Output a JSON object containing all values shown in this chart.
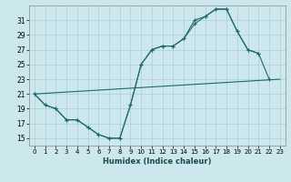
{
  "xlabel": "Humidex (Indice chaleur)",
  "bg_color": "#cce8ec",
  "grid_color": "#aacdd4",
  "line_color": "#1a6b6b",
  "xlim": [
    -0.5,
    23.5
  ],
  "ylim": [
    14,
    33
  ],
  "xticks": [
    0,
    1,
    2,
    3,
    4,
    5,
    6,
    7,
    8,
    9,
    10,
    11,
    12,
    13,
    14,
    15,
    16,
    17,
    18,
    19,
    20,
    21,
    22,
    23
  ],
  "yticks": [
    15,
    17,
    19,
    21,
    23,
    25,
    27,
    29,
    31
  ],
  "line1_x": [
    0,
    1,
    2,
    3,
    4,
    5,
    6,
    7,
    8,
    9,
    10,
    11,
    12,
    13,
    14,
    15,
    16,
    17,
    18,
    19,
    20,
    21
  ],
  "line1_y": [
    21,
    19.5,
    19,
    17.5,
    17.5,
    16.5,
    15.5,
    15,
    15,
    19.5,
    25,
    27,
    27.5,
    27.5,
    28.5,
    30.5,
    31.5,
    32.5,
    32.5,
    29.5,
    27.0,
    26.5
  ],
  "line2_x": [
    0,
    1,
    2,
    3,
    4,
    5,
    6,
    7,
    8,
    9,
    10,
    11,
    12,
    13,
    14,
    15,
    16,
    17,
    18,
    19,
    20,
    21,
    22
  ],
  "line2_y": [
    21,
    19.5,
    19,
    17.5,
    17.5,
    16.5,
    15.5,
    15,
    15,
    19.5,
    25,
    27,
    27.5,
    27.5,
    28.5,
    31,
    31.5,
    32.5,
    32.5,
    29.5,
    27.0,
    26.5,
    23.0
  ],
  "line3_x": [
    0,
    23
  ],
  "line3_y": [
    21,
    23
  ]
}
